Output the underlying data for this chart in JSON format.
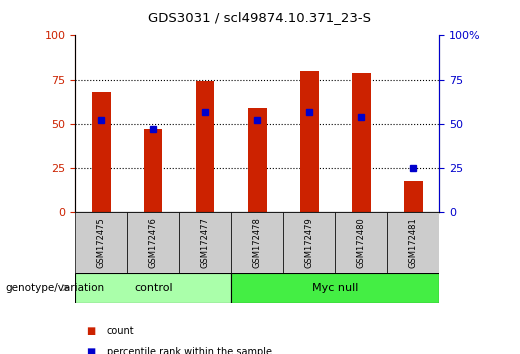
{
  "title": "GDS3031 / scl49874.10.371_23-S",
  "samples": [
    "GSM172475",
    "GSM172476",
    "GSM172477",
    "GSM172478",
    "GSM172479",
    "GSM172480",
    "GSM172481"
  ],
  "counts": [
    68,
    47,
    74,
    59,
    80,
    79,
    18
  ],
  "percentile_ranks": [
    52,
    47,
    57,
    52,
    57,
    54,
    25
  ],
  "groups": [
    {
      "label": "control",
      "n_samples": 3,
      "color": "#aaffaa"
    },
    {
      "label": "Myc null",
      "n_samples": 4,
      "color": "#33dd33"
    }
  ],
  "bar_color": "#cc2200",
  "percentile_color": "#0000cc",
  "ylim": [
    0,
    100
  ],
  "yticks_left": [
    0,
    25,
    50,
    75,
    100
  ],
  "ytick_labels_right": [
    "0",
    "25",
    "50",
    "75",
    "100%"
  ],
  "grid_color": "black",
  "bar_width": 0.35,
  "tick_bg_color": "#cccccc",
  "legend_count_color": "#cc2200",
  "legend_pct_color": "#0000cc",
  "group_label": "genotype/variation",
  "ctrl_color": "#aaffaa",
  "myc_color": "#44ee44"
}
